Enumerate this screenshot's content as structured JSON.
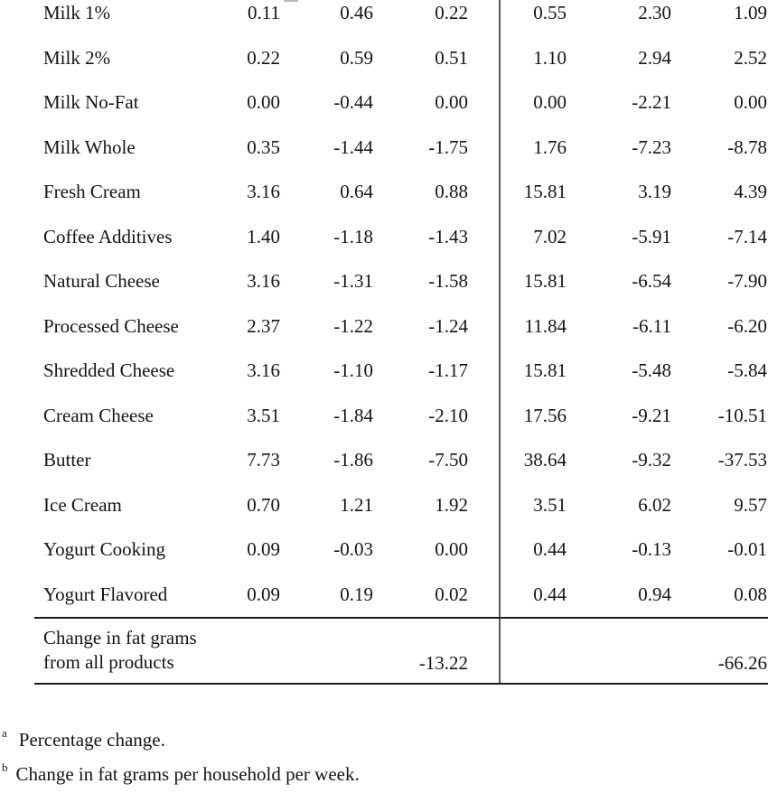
{
  "table": {
    "rows": [
      {
        "label": "Milk 1%",
        "values": [
          "0.11",
          "0.46",
          "0.22",
          "0.55",
          "2.30",
          "1.09"
        ]
      },
      {
        "label": "Milk 2%",
        "values": [
          "0.22",
          "0.59",
          "0.51",
          "1.10",
          "2.94",
          "2.52"
        ]
      },
      {
        "label": "Milk No-Fat",
        "values": [
          "0.00",
          "-0.44",
          "0.00",
          "0.00",
          "-2.21",
          "0.00"
        ]
      },
      {
        "label": "Milk Whole",
        "values": [
          "0.35",
          "-1.44",
          "-1.75",
          "1.76",
          "-7.23",
          "-8.78"
        ]
      },
      {
        "label": "Fresh Cream",
        "values": [
          "3.16",
          "0.64",
          "0.88",
          "15.81",
          "3.19",
          "4.39"
        ]
      },
      {
        "label": "Coffee Additives",
        "values": [
          "1.40",
          "-1.18",
          "-1.43",
          "7.02",
          "-5.91",
          "-7.14"
        ]
      },
      {
        "label": "Natural Cheese",
        "values": [
          "3.16",
          "-1.31",
          "-1.58",
          "15.81",
          "-6.54",
          "-7.90"
        ]
      },
      {
        "label": "Processed Cheese",
        "values": [
          "2.37",
          "-1.22",
          "-1.24",
          "11.84",
          "-6.11",
          "-6.20"
        ]
      },
      {
        "label": "Shredded Cheese",
        "values": [
          "3.16",
          "-1.10",
          "-1.17",
          "15.81",
          "-5.48",
          "-5.84"
        ]
      },
      {
        "label": "Cream Cheese",
        "values": [
          "3.51",
          "-1.84",
          "-2.10",
          "17.56",
          "-9.21",
          "-10.51"
        ]
      },
      {
        "label": "Butter",
        "values": [
          "7.73",
          "-1.86",
          "-7.50",
          "38.64",
          "-9.32",
          "-37.53"
        ]
      },
      {
        "label": "Ice Cream",
        "values": [
          "0.70",
          "1.21",
          "1.92",
          "3.51",
          "6.02",
          "9.57"
        ]
      },
      {
        "label": "Yogurt Cooking",
        "values": [
          "0.09",
          "-0.03",
          "0.00",
          "0.44",
          "-0.13",
          "-0.01"
        ]
      },
      {
        "label": "Yogurt Flavored",
        "values": [
          "0.09",
          "0.19",
          "0.02",
          "0.44",
          "0.94",
          "0.08"
        ]
      }
    ],
    "summary": {
      "label_line1": "Change in fat grams",
      "label_line2": "from all products",
      "left_group_total": "-13.22",
      "right_group_total": "-66.26"
    }
  },
  "footnotes": [
    {
      "marker": "a",
      "text": "Percentage change."
    },
    {
      "marker": "b",
      "text": "Change in fat grams per household per week."
    }
  ],
  "colors": {
    "text": "#141414",
    "horizontal_rule": "#1c1c1c",
    "vertical_divider": "#5a5a5a",
    "background": "#ffffff"
  }
}
